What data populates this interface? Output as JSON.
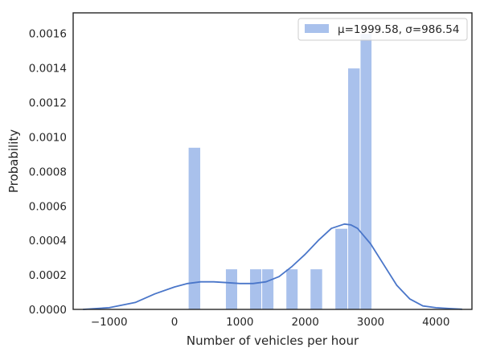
{
  "chart_data": {
    "type": "bar",
    "title": "",
    "xlabel": "Number of vehicles per hour",
    "ylabel": "Probability",
    "xlim": [
      -1550,
      4550
    ],
    "ylim": [
      0,
      0.00172
    ],
    "xticks": [
      -1000,
      0,
      1000,
      2000,
      3000,
      4000
    ],
    "xtick_labels": [
      "−1000",
      "0",
      "1000",
      "2000",
      "3000",
      "4000"
    ],
    "yticks": [
      0,
      0.0002,
      0.0004,
      0.0006,
      0.0008,
      0.001,
      0.0012,
      0.0014,
      0.0016
    ],
    "ytick_labels": [
      "0.0000",
      "0.0002",
      "0.0004",
      "0.0006",
      "0.0008",
      "0.0010",
      "0.0012",
      "0.0014",
      "0.0016"
    ],
    "grid": false,
    "legend": {
      "placement": "top-right",
      "entries": [
        "μ=1999.58, σ=986.54"
      ]
    },
    "series": [
      {
        "type": "histogram",
        "bins": [
          {
            "x0": 210,
            "x1": 400,
            "value": 0.00094
          },
          {
            "x0": 400,
            "x1": 590,
            "value": 0
          },
          {
            "x0": 590,
            "x1": 780,
            "value": 0
          },
          {
            "x0": 780,
            "x1": 965,
            "value": 0.000235
          },
          {
            "x0": 965,
            "x1": 1150,
            "value": 0
          },
          {
            "x0": 1150,
            "x1": 1335,
            "value": 0.000235
          },
          {
            "x0": 1335,
            "x1": 1520,
            "value": 0.000235
          },
          {
            "x0": 1520,
            "x1": 1705,
            "value": 0
          },
          {
            "x0": 1705,
            "x1": 1890,
            "value": 0.000235
          },
          {
            "x0": 1890,
            "x1": 2075,
            "value": 0
          },
          {
            "x0": 2075,
            "x1": 2265,
            "value": 0.000235
          },
          {
            "x0": 2265,
            "x1": 2455,
            "value": 0
          },
          {
            "x0": 2455,
            "x1": 2650,
            "value": 0.00047
          },
          {
            "x0": 2650,
            "x1": 2840,
            "value": 0.0014
          },
          {
            "x0": 2840,
            "x1": 3020,
            "value": 0.0016
          }
        ]
      },
      {
        "type": "kde",
        "x": [
          -1400,
          -1000,
          -600,
          -300,
          0,
          200,
          400,
          600,
          800,
          1000,
          1200,
          1400,
          1600,
          1800,
          2000,
          2200,
          2400,
          2600,
          2700,
          2800,
          3000,
          3200,
          3400,
          3600,
          3800,
          4000,
          4200,
          4400
        ],
        "y": [
          0.0,
          1e-05,
          4e-05,
          9e-05,
          0.00013,
          0.00015,
          0.00016,
          0.00016,
          0.000155,
          0.00015,
          0.00015,
          0.00016,
          0.00019,
          0.00025,
          0.00032,
          0.0004,
          0.00047,
          0.000495,
          0.00049,
          0.00047,
          0.00038,
          0.00026,
          0.00014,
          6e-05,
          2e-05,
          1e-05,
          5e-06,
          1e-06
        ]
      }
    ],
    "colors": {
      "bar": "#a9c1ec",
      "bar_edge": "#ffffff",
      "kde": "#4a76c9",
      "axes": "#262626",
      "legend_border": "#cccccc"
    }
  }
}
